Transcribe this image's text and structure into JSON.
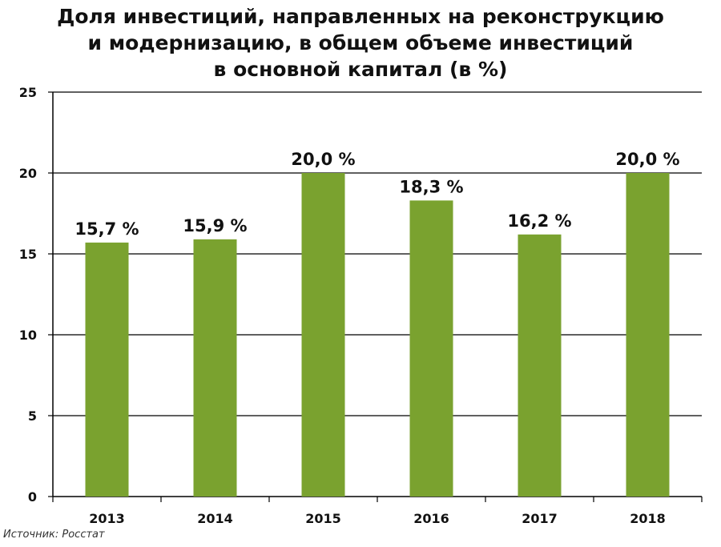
{
  "chart_data": {
    "type": "bar",
    "title_lines": [
      "Доля инвестиций, направленных на реконструкцию",
      "и модернизацию, в общем объеме инвестиций",
      "в основной капитал  (в %)"
    ],
    "categories": [
      "2013",
      "2014",
      "2015",
      "2016",
      "2017",
      "2018"
    ],
    "values": [
      15.7,
      15.9,
      20.0,
      18.3,
      16.2,
      20.0
    ],
    "data_labels": [
      "15,7 %",
      "15,9 %",
      "20,0 %",
      "18,3 %",
      "16,2 %",
      "20,0 %"
    ],
    "y_ticks": [
      "0",
      "5",
      "10",
      "15",
      "20",
      "25"
    ],
    "ylim": [
      0,
      25
    ],
    "grid": true,
    "bar_color": "#7aa22f"
  },
  "source": "Источник: Росстат"
}
